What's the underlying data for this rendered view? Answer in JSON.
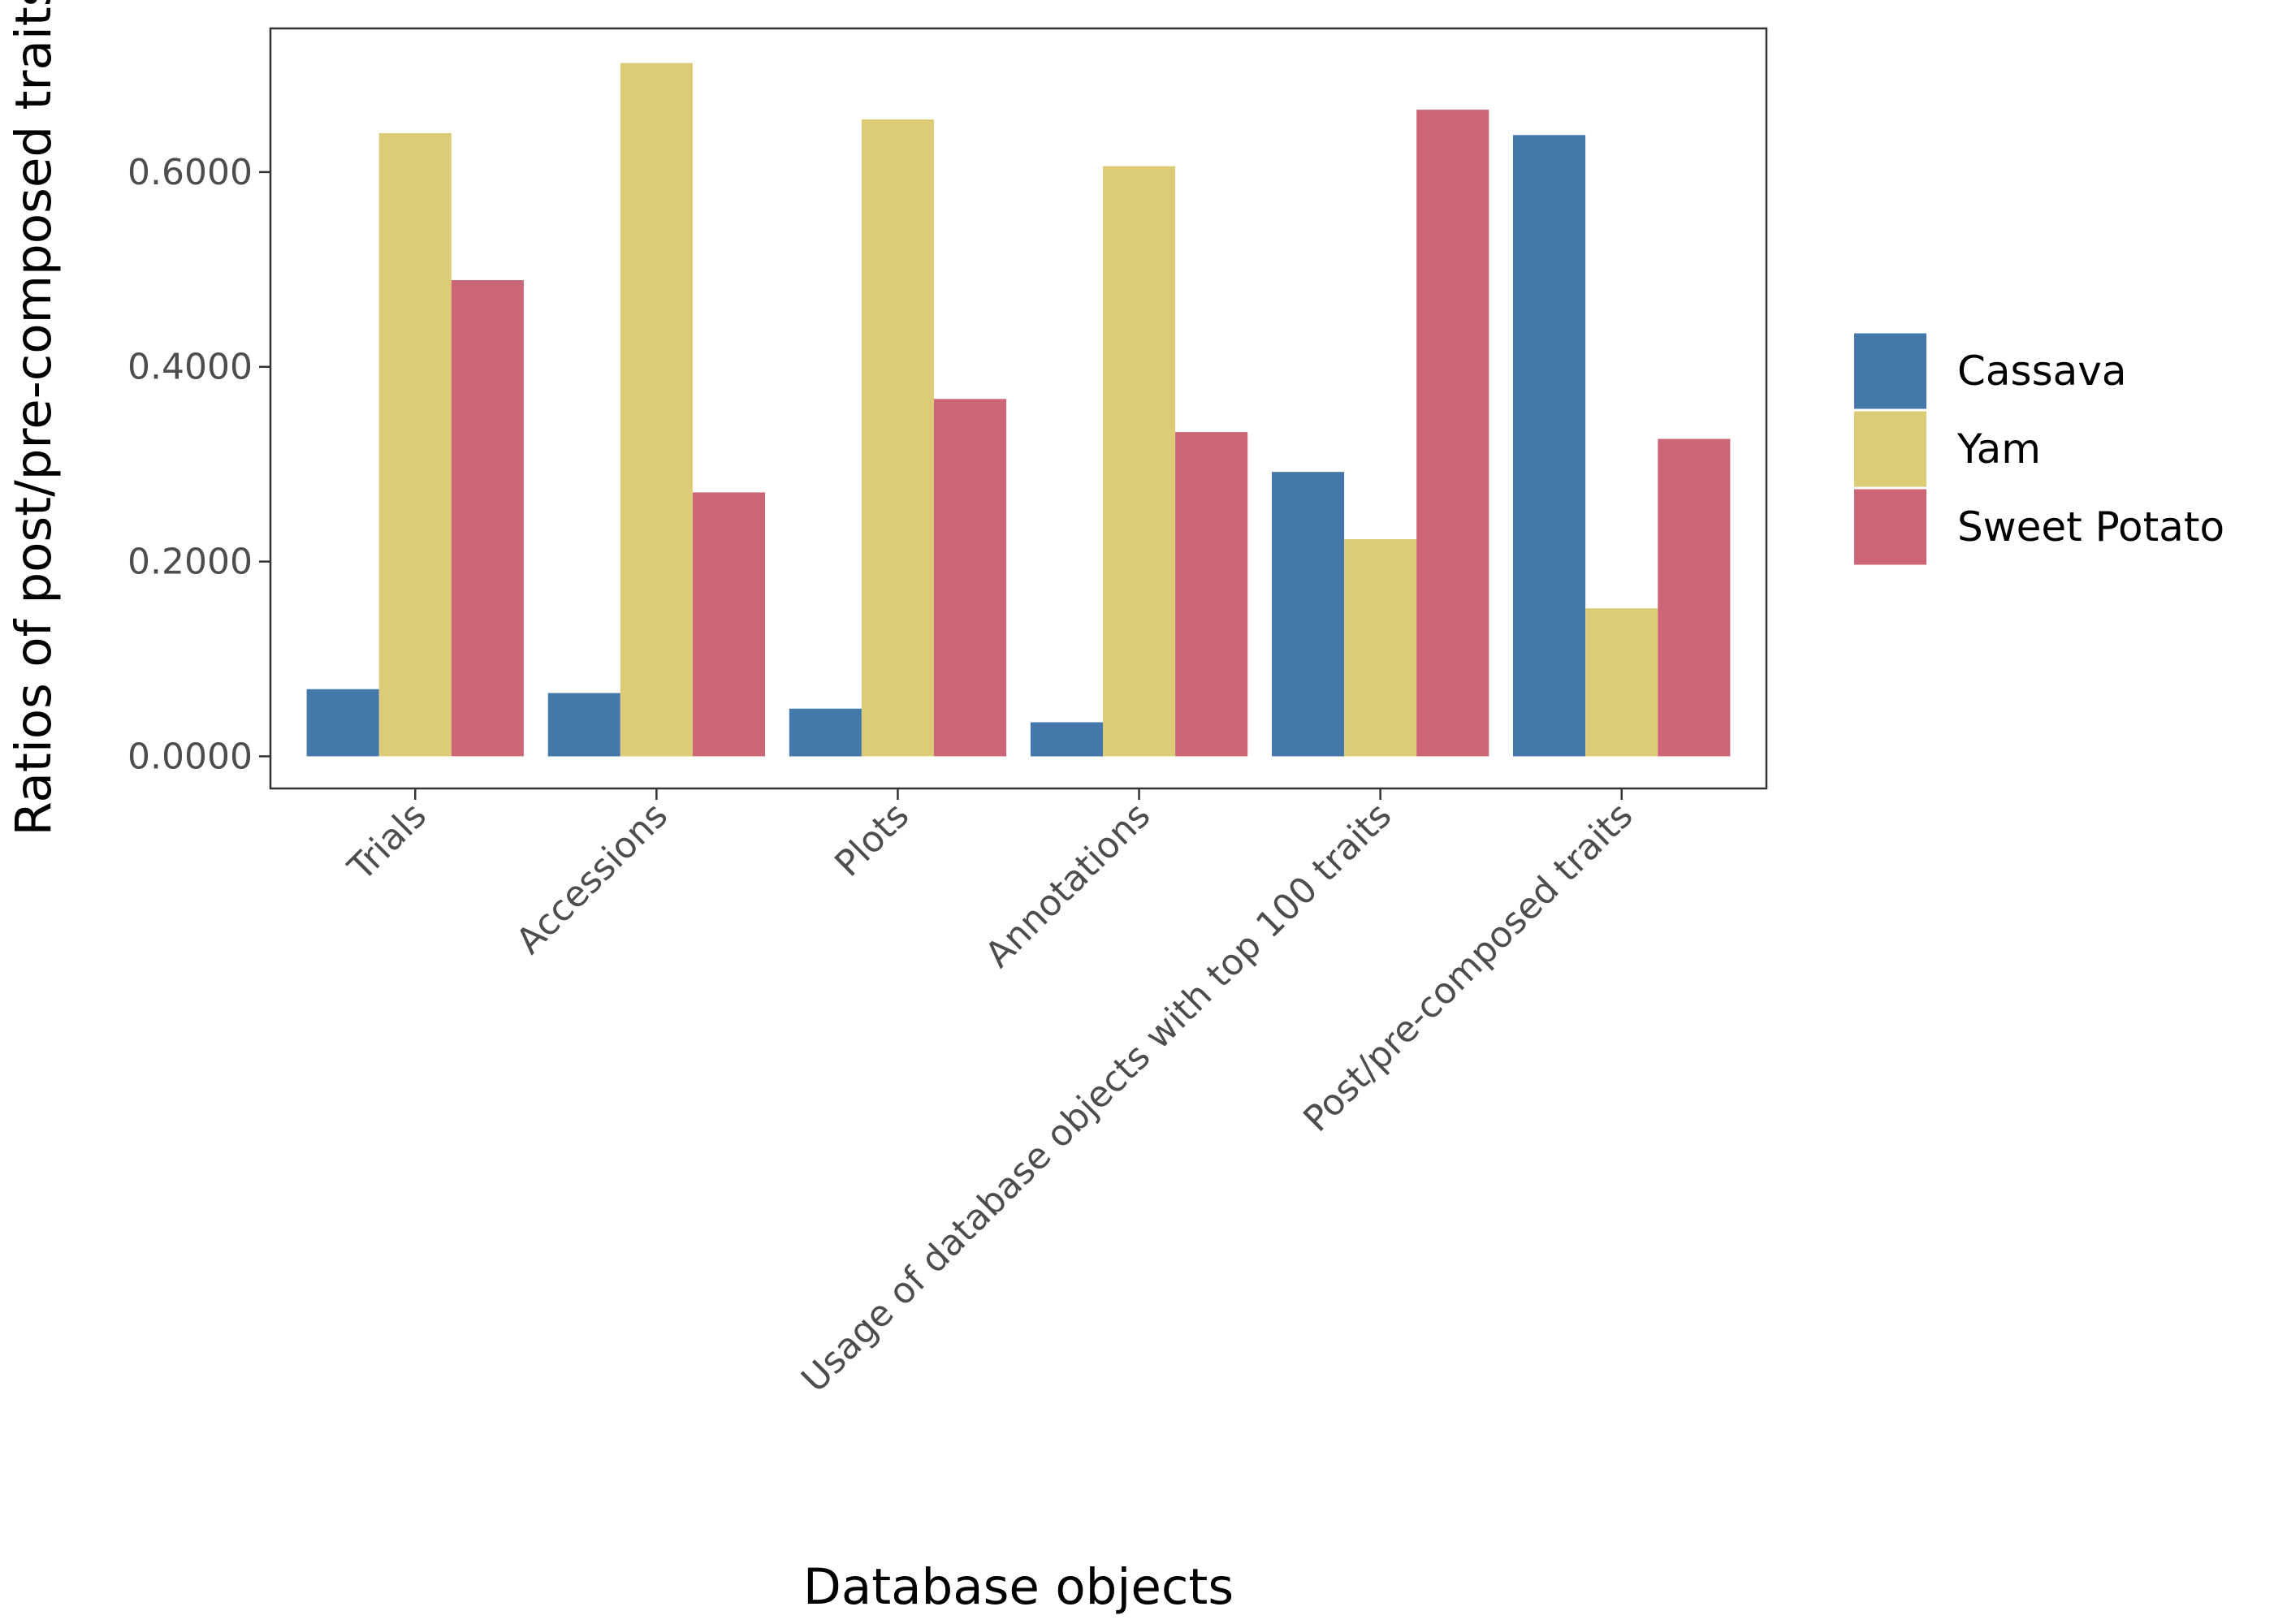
{
  "chart_data": {
    "type": "bar",
    "title": "",
    "xlabel": "Database objects",
    "ylabel": "Ratios of post/pre-composed traits",
    "ylim": [
      -0.033,
      0.7475
    ],
    "yticks": [
      0,
      0.2,
      0.4,
      0.6
    ],
    "ytick_labels": [
      "0.0000",
      "0.2000",
      "0.4000",
      "0.6000"
    ],
    "categories": [
      "Trials",
      "Accessions",
      "Plots",
      "Annotations",
      "Usage of database objects with top 100 traits",
      "Post/pre-composed traits"
    ],
    "series": [
      {
        "name": "Cassava",
        "color": "#4477aa",
        "values": [
          0.069,
          0.065,
          0.049,
          0.035,
          0.292,
          0.638
        ]
      },
      {
        "name": "Yam",
        "color": "#ddcc77",
        "values": [
          0.64,
          0.712,
          0.654,
          0.606,
          0.223,
          0.152
        ]
      },
      {
        "name": "Sweet Potato",
        "color": "#cc6677",
        "values": [
          0.489,
          0.271,
          0.367,
          0.333,
          0.664,
          0.326
        ]
      }
    ],
    "grid": false,
    "legend_position": "right"
  }
}
